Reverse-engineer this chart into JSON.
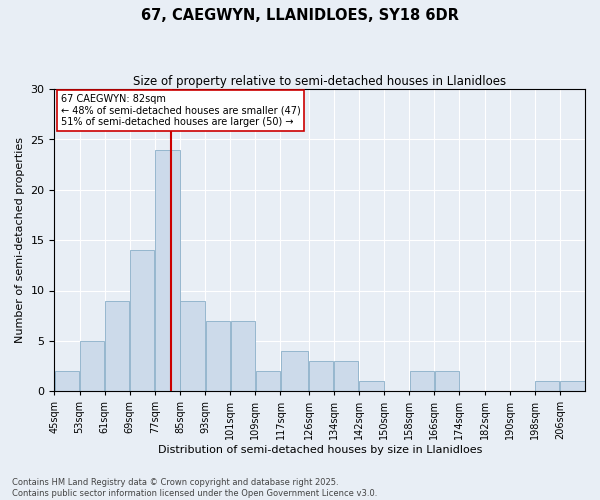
{
  "title": "67, CAEGWYN, LLANIDLOES, SY18 6DR",
  "subtitle": "Size of property relative to semi-detached houses in Llanidloes",
  "xlabel": "Distribution of semi-detached houses by size in Llanidloes",
  "ylabel": "Number of semi-detached properties",
  "footnote": "Contains HM Land Registry data © Crown copyright and database right 2025.\nContains public sector information licensed under the Open Government Licence v3.0.",
  "annotation_line1": "67 CAEGWYN: 82sqm",
  "annotation_line2": "← 48% of semi-detached houses are smaller (47)",
  "annotation_line3": "51% of semi-detached houses are larger (50) →",
  "bar_color": "#ccdaea",
  "bar_edge_color": "#8aafc8",
  "background_color": "#e8eef5",
  "vline_x": 82,
  "vline_color": "#cc0000",
  "bin_edges": [
    45,
    53,
    61,
    69,
    77,
    85,
    93,
    101,
    109,
    117,
    126,
    134,
    142,
    150,
    158,
    166,
    174,
    182,
    190,
    198,
    206,
    214
  ],
  "tick_labels": [
    "45sqm",
    "53sqm",
    "61sqm",
    "69sqm",
    "77sqm",
    "85sqm",
    "93sqm",
    "101sqm",
    "109sqm",
    "117sqm",
    "126sqm",
    "134sqm",
    "142sqm",
    "150sqm",
    "158sqm",
    "166sqm",
    "174sqm",
    "182sqm",
    "190sqm",
    "198sqm",
    "206sqm"
  ],
  "values": [
    2,
    5,
    9,
    14,
    24,
    9,
    7,
    7,
    2,
    4,
    3,
    3,
    1,
    0,
    2,
    2,
    0,
    0,
    0,
    1,
    1
  ],
  "ylim": [
    0,
    30
  ],
  "yticks": [
    0,
    5,
    10,
    15,
    20,
    25,
    30
  ]
}
